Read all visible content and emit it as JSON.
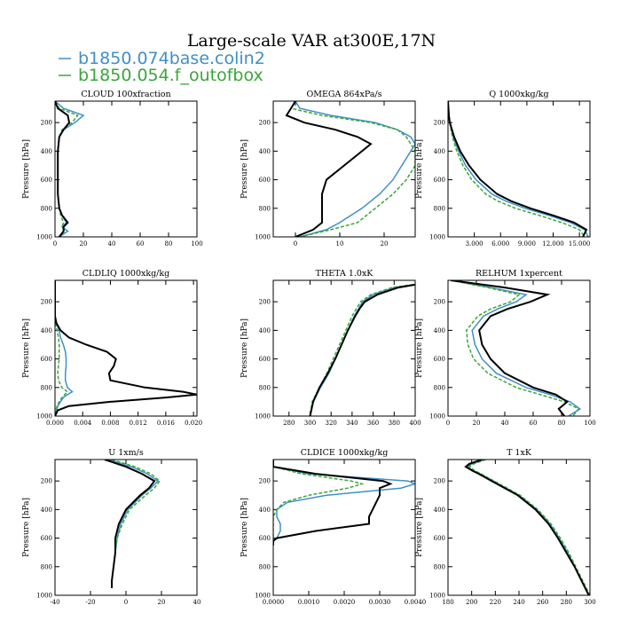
{
  "figure": {
    "title": "Large-scale VAR at300E,17N",
    "ylabel": "Pressure [hPa]",
    "legend": [
      {
        "name": "b1850.074base.colin2",
        "color": "#3f8fc8"
      },
      {
        "name": "b1850.054.f_outofbox",
        "color": "#3aa63a"
      }
    ]
  },
  "chart_data": [
    {
      "type": "line",
      "title": "CLOUD  100xfraction",
      "ylabel": "Pressure [hPa]",
      "xlim": [
        0,
        100
      ],
      "ylim": [
        1000,
        50
      ],
      "xticks": [
        "0",
        "20",
        "40",
        "60",
        "80",
        "100"
      ],
      "yticks": [
        "200",
        "400",
        "600",
        "800",
        "1000"
      ],
      "y": [
        50,
        100,
        150,
        200,
        250,
        300,
        400,
        500,
        600,
        700,
        800,
        850,
        900,
        930,
        960,
        1000
      ],
      "series": [
        {
          "name": "b1850.074base.colin2",
          "values": [
            0,
            6,
            20,
            14,
            6,
            3,
            2,
            2,
            2,
            2,
            3,
            5,
            8,
            5,
            9,
            3
          ]
        },
        {
          "name": "b1850.054.f_outofbox",
          "values": [
            0,
            3,
            16,
            12,
            5,
            3,
            2,
            2,
            2,
            2,
            3,
            4,
            6,
            5,
            7,
            3
          ]
        },
        {
          "name": "",
          "values": [
            0,
            2,
            9,
            10,
            6,
            3,
            2,
            2,
            2,
            2,
            3,
            5,
            9,
            6,
            6,
            3
          ]
        }
      ]
    },
    {
      "type": "line",
      "title": "OMEGA  864xPa/s",
      "ylabel": "Pressure [hPa]",
      "xlim": [
        -5,
        27
      ],
      "ylim": [
        1000,
        50
      ],
      "xticks": [
        "0",
        "10",
        "20"
      ],
      "yticks": [
        "200",
        "400",
        "600",
        "800",
        "1000"
      ],
      "y": [
        50,
        100,
        150,
        200,
        250,
        300,
        350,
        400,
        500,
        600,
        700,
        800,
        900,
        950,
        1000
      ],
      "series": [
        {
          "name": "b1850.074base.colin2",
          "values": [
            0,
            1,
            8,
            18,
            23,
            26,
            27,
            26,
            24,
            22,
            19,
            15,
            10,
            7,
            1
          ]
        },
        {
          "name": "b1850.054.f_outofbox",
          "values": [
            0,
            -1,
            6,
            17,
            23,
            25,
            26,
            27,
            27,
            25,
            22,
            18,
            14,
            8,
            1
          ]
        },
        {
          "name": "",
          "values": [
            0,
            -1,
            -2,
            2,
            9,
            14,
            17,
            15,
            11,
            7,
            6,
            6,
            6,
            4,
            0
          ]
        }
      ]
    },
    {
      "type": "line",
      "title": "Q  1000xkg/kg",
      "ylabel": "Pressure [hPa]",
      "xlim": [
        0,
        16.2
      ],
      "ylim": [
        1000,
        50
      ],
      "xticks": [
        "3.000",
        "6.000",
        "9.000",
        "12.000",
        "15.000"
      ],
      "yticks": [
        "200",
        "400",
        "600",
        "800",
        "1000"
      ],
      "y": [
        50,
        150,
        200,
        300,
        400,
        500,
        600,
        700,
        750,
        800,
        850,
        900,
        950,
        1000
      ],
      "series": [
        {
          "name": "b1850.074base.colin2",
          "values": [
            0,
            0.1,
            0.2,
            0.6,
            1.2,
            2.0,
            3.2,
            5.0,
            6.6,
            8.8,
            11.5,
            14,
            15.6,
            16
          ]
        },
        {
          "name": "b1850.054.f_outofbox",
          "values": [
            0,
            0.1,
            0.2,
            0.5,
            1.0,
            1.7,
            2.7,
            4.3,
            5.7,
            7.7,
            10.4,
            13,
            15,
            15.6
          ]
        },
        {
          "name": "",
          "values": [
            0,
            0.1,
            0.2,
            0.7,
            1.4,
            2.4,
            3.7,
            5.6,
            7.2,
            9.4,
            12,
            14.4,
            15.8,
            15.4
          ]
        }
      ]
    },
    {
      "type": "line",
      "title": "CLDLIQ  1000xkg/kg",
      "ylabel": "Pressure [hPa]",
      "xlim": [
        0,
        0.0205
      ],
      "ylim": [
        1000,
        50
      ],
      "xticks": [
        "0.000",
        "0.004",
        "0.008",
        "0.012",
        "0.016",
        "0.020"
      ],
      "yticks": [
        "200",
        "400",
        "600",
        "800",
        "1000"
      ],
      "y": [
        50,
        300,
        350,
        400,
        450,
        500,
        550,
        600,
        650,
        700,
        750,
        800,
        830,
        850,
        870,
        900,
        930,
        960,
        1000
      ],
      "series": [
        {
          "name": "b1850.074base.colin2",
          "values": [
            0,
            0,
            0.0002,
            0.0006,
            0.0008,
            0.0012,
            0.0015,
            0.0016,
            0.0016,
            0.0015,
            0.0015,
            0.0018,
            0.0025,
            0.0018,
            0.0012,
            0.0008,
            0.0004,
            0.0002,
            0
          ]
        },
        {
          "name": "b1850.054.f_outofbox",
          "values": [
            0,
            0,
            0.0001,
            0.0003,
            0.0005,
            0.0006,
            0.0006,
            0.0006,
            0.0005,
            0.0004,
            0.0005,
            0.001,
            0.0018,
            0.0014,
            0.001,
            0.0006,
            0.0003,
            0.0001,
            0
          ]
        },
        {
          "name": "",
          "values": [
            0,
            0,
            0.0002,
            0.0008,
            0.002,
            0.0045,
            0.0075,
            0.0088,
            0.0085,
            0.0078,
            0.008,
            0.013,
            0.0185,
            0.0205,
            0.016,
            0.008,
            0.002,
            0.0004,
            0
          ]
        }
      ]
    },
    {
      "type": "line",
      "title": "THETA  1.0xK",
      "ylabel": "Pressure [hPa]",
      "xlim": [
        265,
        400
      ],
      "ylim": [
        1000,
        50
      ],
      "xticks": [
        "280",
        "300",
        "320",
        "340",
        "360",
        "380",
        "400"
      ],
      "yticks": [
        "200",
        "400",
        "600",
        "800",
        "1000"
      ],
      "y": [
        80,
        100,
        150,
        200,
        250,
        300,
        400,
        500,
        600,
        700,
        800,
        900,
        1000
      ],
      "series": [
        {
          "name": "b1850.074base.colin2",
          "values": [
            400,
            380,
            360,
            350,
            346,
            342,
            336,
            330,
            324,
            318,
            310,
            303,
            300
          ]
        },
        {
          "name": "b1850.054.f_outofbox",
          "values": [
            398,
            378,
            358,
            348,
            344,
            340,
            334,
            328,
            322,
            316,
            309,
            302,
            300
          ]
        },
        {
          "name": "",
          "values": [
            400,
            384,
            364,
            352,
            347,
            343,
            336,
            330,
            324,
            317,
            309,
            303,
            300
          ]
        }
      ]
    },
    {
      "type": "line",
      "title": "RELHUM  1xpercent",
      "ylabel": "Pressure [hPa]",
      "xlim": [
        0,
        100
      ],
      "ylim": [
        1000,
        50
      ],
      "xticks": [
        "0",
        "20",
        "40",
        "60",
        "80",
        "100"
      ],
      "yticks": [
        "200",
        "400",
        "600",
        "800",
        "1000"
      ],
      "y": [
        50,
        100,
        150,
        200,
        250,
        300,
        400,
        500,
        600,
        700,
        800,
        850,
        900,
        950,
        1000
      ],
      "series": [
        {
          "name": "b1850.074base.colin2",
          "values": [
            2,
            30,
            55,
            48,
            35,
            25,
            17,
            19,
            24,
            34,
            55,
            72,
            86,
            93,
            85
          ]
        },
        {
          "name": "b1850.054.f_outofbox",
          "values": [
            2,
            28,
            50,
            44,
            30,
            21,
            13,
            14,
            18,
            28,
            48,
            65,
            82,
            92,
            88
          ]
        },
        {
          "name": "",
          "values": [
            2,
            40,
            70,
            58,
            42,
            30,
            22,
            24,
            30,
            40,
            60,
            76,
            84,
            78,
            82
          ]
        }
      ]
    },
    {
      "type": "line",
      "title": "U  1xm/s",
      "ylabel": "Pressure [hPa]",
      "xlim": [
        -40,
        40
      ],
      "ylim": [
        1000,
        50
      ],
      "xticks": [
        "-40",
        "-20",
        "0",
        "20",
        "40"
      ],
      "yticks": [
        "200",
        "400",
        "600",
        "800",
        "1000"
      ],
      "y": [
        50,
        100,
        150,
        200,
        250,
        300,
        400,
        500,
        600,
        700,
        800,
        900,
        950
      ],
      "series": [
        {
          "name": "b1850.074base.colin2",
          "values": [
            -10,
            3,
            12,
            18,
            14,
            9,
            1,
            -3,
            -5,
            -6,
            -7,
            -8,
            -8
          ]
        },
        {
          "name": "b1850.054.f_outofbox",
          "values": [
            -8,
            5,
            14,
            19,
            16,
            11,
            2,
            -2,
            -5,
            -6,
            -7,
            -8,
            -8
          ]
        },
        {
          "name": "",
          "values": [
            -12,
            0,
            9,
            16,
            13,
            8,
            0,
            -4,
            -6,
            -6,
            -7,
            -8,
            -8
          ]
        }
      ]
    },
    {
      "type": "line",
      "title": "CLDICE  1000xkg/kg",
      "ylabel": "Pressure [hPa]",
      "xlim": [
        0,
        0.004
      ],
      "ylim": [
        1000,
        50
      ],
      "xticks": [
        "0.0000",
        "0.0010",
        "0.0020",
        "0.0030",
        "0.0040"
      ],
      "yticks": [
        "200",
        "400",
        "600",
        "800",
        "1000"
      ],
      "y": [
        50,
        100,
        150,
        200,
        220,
        250,
        300,
        350,
        400,
        450,
        500,
        550,
        600,
        620,
        650
      ],
      "series": [
        {
          "name": "b1850.074base.colin2",
          "values": [
            0,
            0,
            0.001,
            0.0038,
            0.004,
            0.0036,
            0.0015,
            0.0004,
            0.0001,
            0.0001,
            0.0002,
            0.0002,
            0.0001,
            0,
            0
          ]
        },
        {
          "name": "b1850.054.f_outofbox",
          "values": [
            0,
            0,
            0.0008,
            0.0022,
            0.0025,
            0.0021,
            0.001,
            0.0003,
            0.0001,
            0,
            0,
            0,
            0,
            0,
            0
          ]
        },
        {
          "name": "",
          "values": [
            0,
            0,
            0.0012,
            0.0031,
            0.0033,
            0.003,
            0.003,
            0.0029,
            0.0028,
            0.0027,
            0.0027,
            0.0012,
            0.0001,
            0,
            0
          ]
        }
      ]
    },
    {
      "type": "line",
      "title": "T  1xK",
      "ylabel": "Pressure [hPa]",
      "xlim": [
        180,
        300
      ],
      "ylim": [
        1000,
        50
      ],
      "xticks": [
        "180",
        "200",
        "220",
        "240",
        "260",
        "280",
        "300"
      ],
      "yticks": [
        "200",
        "400",
        "600",
        "800",
        "1000"
      ],
      "y": [
        50,
        80,
        100,
        130,
        150,
        200,
        250,
        300,
        400,
        500,
        600,
        700,
        800,
        900,
        1000
      ],
      "series": [
        {
          "name": "b1850.074base.colin2",
          "values": [
            210,
            200,
            196,
            202,
            207,
            218,
            229,
            240,
            255,
            266,
            274,
            281,
            287,
            293,
            299
          ]
        },
        {
          "name": "b1850.054.f_outofbox",
          "values": [
            212,
            202,
            198,
            203,
            208,
            219,
            230,
            241,
            256,
            267,
            275,
            282,
            288,
            294,
            300
          ]
        },
        {
          "name": "",
          "values": [
            209,
            198,
            195,
            201,
            206,
            217,
            228,
            239,
            254,
            265,
            273,
            280,
            287,
            293,
            299
          ]
        }
      ]
    }
  ]
}
